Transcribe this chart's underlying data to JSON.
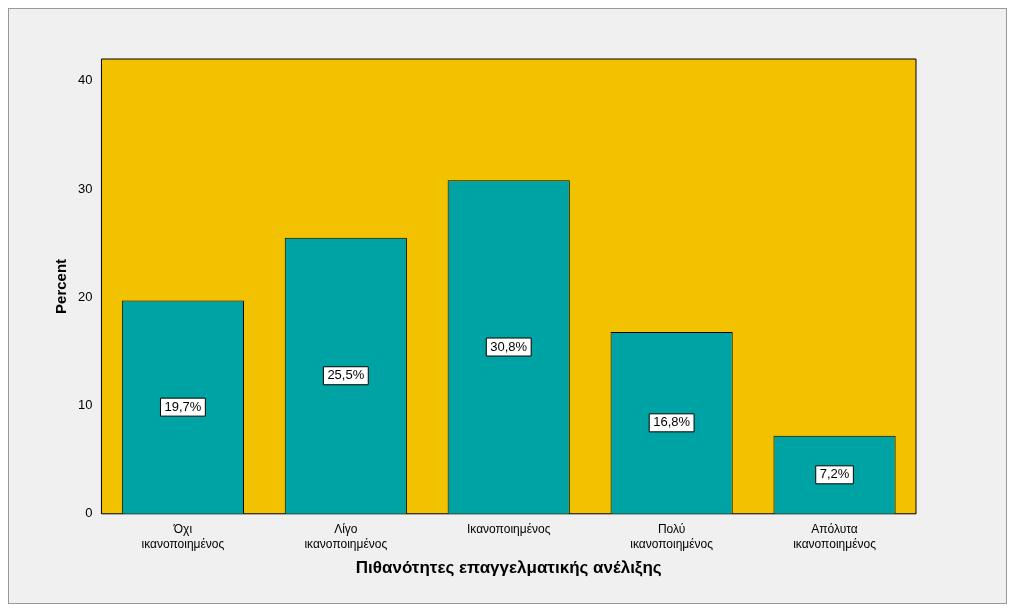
{
  "chart_data": {
    "type": "bar",
    "xlabel": "Πιθανότητες επαγγελματικής ανέλιξης",
    "ylabel": "Percent",
    "categories": [
      "Όχι ικανοποιημένος",
      "Λίγο ικανοποιημένος",
      "Ικανοποιημένος",
      "Πολύ ικανοποιημένος",
      "Απόλυτα ικανοποιημένος"
    ],
    "values": [
      19.7,
      25.5,
      30.8,
      16.8,
      7.2
    ],
    "value_labels": [
      "19,7%",
      "25,5%",
      "30,8%",
      "16,8%",
      "7,2%"
    ],
    "color": "#00a3a3",
    "ylim": [
      0,
      42
    ],
    "yticks": [
      0,
      10,
      20,
      30,
      40
    ],
    "grid": false,
    "legend": false
  }
}
